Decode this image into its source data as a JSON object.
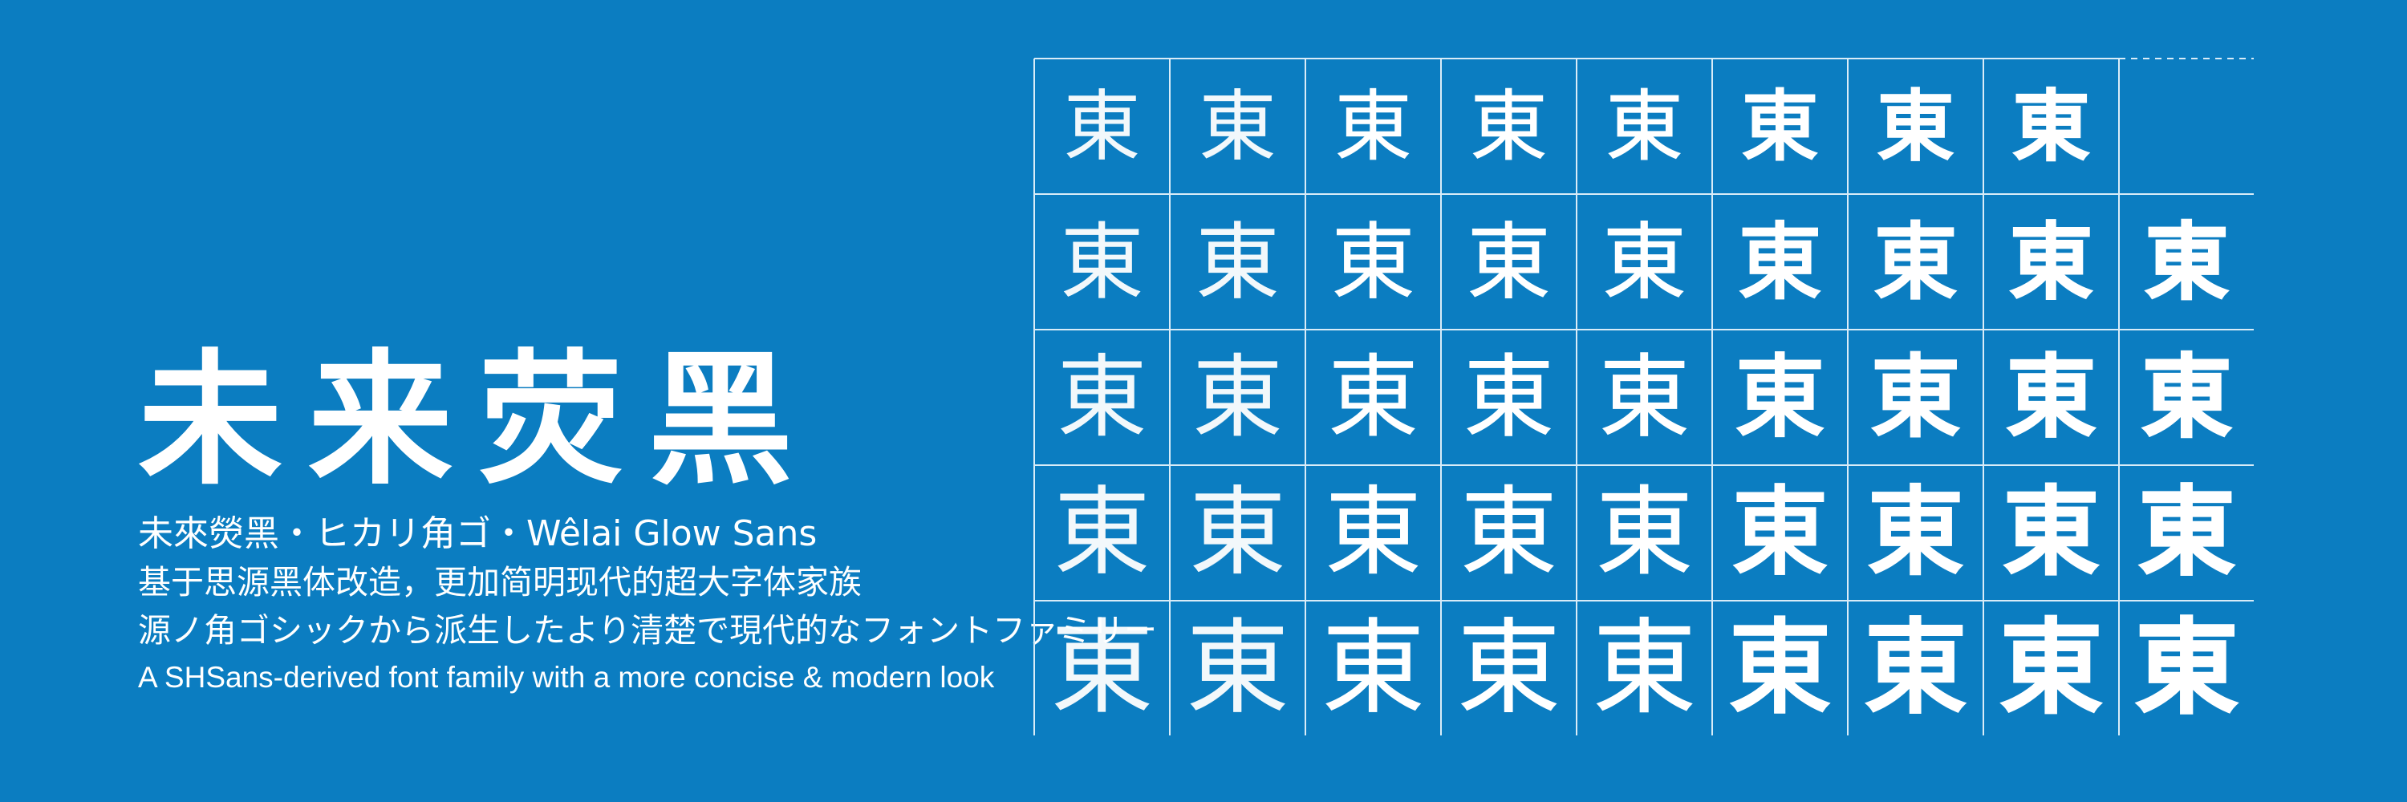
{
  "hero": {
    "title": "未来荧黑",
    "subtitle": "未來熒黑・ヒカリ角ゴ・Wêlai Glow Sans",
    "desc_zh": "基于思源黑体改造，更加简明现代的超大字体家族",
    "desc_ja": "源ノ角ゴシックから派生したより清楚で現代的なフォントファミリー",
    "desc_en": "A SHSans-derived font family with a more concise & modern look"
  },
  "specimen": {
    "glyph": "東",
    "rows": [
      {
        "count": 8,
        "weights": [
          100,
          200,
          300,
          400,
          500,
          600,
          700,
          800
        ]
      },
      {
        "count": 9,
        "weights": [
          100,
          200,
          300,
          400,
          500,
          600,
          700,
          800,
          900
        ]
      },
      {
        "count": 9,
        "weights": [
          100,
          200,
          300,
          400,
          500,
          600,
          700,
          800,
          900
        ]
      },
      {
        "count": 9,
        "weights": [
          100,
          200,
          300,
          400,
          500,
          600,
          700,
          800,
          900
        ]
      },
      {
        "count": 9,
        "weights": [
          100,
          200,
          300,
          400,
          500,
          600,
          700,
          800,
          900
        ]
      }
    ],
    "row_sizes": [
      96,
      104,
      112,
      120,
      128
    ],
    "empty_cell": "dashed"
  },
  "colors": {
    "background": "#0b7dc1",
    "foreground": "#ffffff",
    "grid_line": "#d9ecf8"
  }
}
